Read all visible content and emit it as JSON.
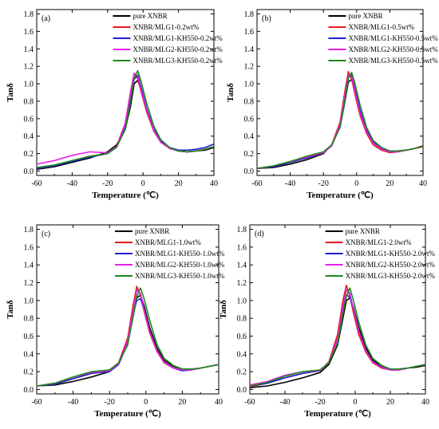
{
  "chart_data": [
    {
      "type": "line",
      "panel_label": "(a)",
      "xlabel": "Temperature (℃)",
      "ylabel": "Tanδ",
      "xlim": [
        -60,
        40
      ],
      "ylim": [
        -0.05,
        1.85
      ],
      "xticks": [
        -60,
        -40,
        -20,
        0,
        20,
        40
      ],
      "yticks": [
        0.0,
        0.2,
        0.4,
        0.6,
        0.8,
        1.0,
        1.2,
        1.4,
        1.6,
        1.8
      ],
      "legend_position": "top-right",
      "grid": false,
      "series": [
        {
          "name": "pure XNBR",
          "color": "#000000",
          "x": [
            -60,
            -50,
            -40,
            -30,
            -20,
            -15,
            -10,
            -7,
            -5,
            -3,
            -1,
            2,
            6,
            10,
            15,
            20,
            25,
            30,
            35,
            40
          ],
          "y": [
            0.02,
            0.05,
            0.1,
            0.15,
            0.22,
            0.3,
            0.48,
            0.75,
            1.0,
            1.04,
            0.92,
            0.7,
            0.48,
            0.34,
            0.26,
            0.23,
            0.22,
            0.23,
            0.24,
            0.27
          ]
        },
        {
          "name": "XNBR/MLG1-0.2wt%",
          "color": "#e41a1c",
          "x": [
            -60,
            -50,
            -40,
            -30,
            -20,
            -15,
            -10,
            -7,
            -5,
            -3,
            -1,
            2,
            6,
            10,
            15,
            20,
            25,
            30,
            35,
            40
          ],
          "y": [
            0.03,
            0.06,
            0.12,
            0.17,
            0.2,
            0.28,
            0.55,
            0.9,
            1.12,
            1.06,
            0.9,
            0.68,
            0.46,
            0.33,
            0.26,
            0.23,
            0.22,
            0.23,
            0.25,
            0.28
          ]
        },
        {
          "name": "XNBR/MLG1-KH550-0.2wt%",
          "color": "#1f1fd6",
          "x": [
            -60,
            -50,
            -40,
            -30,
            -20,
            -15,
            -10,
            -7,
            -5,
            -3,
            -1,
            2,
            6,
            10,
            15,
            20,
            25,
            30,
            35,
            40
          ],
          "y": [
            0.03,
            0.06,
            0.11,
            0.16,
            0.2,
            0.27,
            0.5,
            0.82,
            1.05,
            1.1,
            0.95,
            0.72,
            0.48,
            0.34,
            0.27,
            0.24,
            0.24,
            0.25,
            0.27,
            0.31
          ]
        },
        {
          "name": "XNBR/MLG2-KH550-0.2wt%",
          "color": "#e81ee8",
          "x": [
            -60,
            -50,
            -40,
            -30,
            -20,
            -15,
            -10,
            -7,
            -5,
            -3,
            -1,
            2,
            6,
            10,
            15,
            20,
            25,
            30,
            35,
            40
          ],
          "y": [
            0.08,
            0.12,
            0.18,
            0.22,
            0.21,
            0.28,
            0.55,
            0.92,
            1.12,
            1.08,
            0.92,
            0.7,
            0.47,
            0.33,
            0.26,
            0.23,
            0.22,
            0.23,
            0.25,
            0.28
          ]
        },
        {
          "name": "XNBR/MLG3-KH550-0.2wt%",
          "color": "#1a8a1a",
          "x": [
            -60,
            -50,
            -40,
            -30,
            -20,
            -15,
            -10,
            -7,
            -5,
            -3,
            -1,
            2,
            6,
            10,
            15,
            20,
            25,
            30,
            35,
            40
          ],
          "y": [
            0.04,
            0.07,
            0.12,
            0.17,
            0.2,
            0.27,
            0.48,
            0.8,
            1.06,
            1.15,
            1.02,
            0.78,
            0.52,
            0.36,
            0.27,
            0.23,
            0.22,
            0.23,
            0.25,
            0.28
          ]
        }
      ]
    },
    {
      "type": "line",
      "panel_label": "(b)",
      "xlabel": "Temperature (℃)",
      "ylabel": "Tanδ",
      "xlim": [
        -60,
        40
      ],
      "ylim": [
        -0.05,
        1.85
      ],
      "xticks": [
        -60,
        -40,
        -20,
        0,
        20,
        40
      ],
      "yticks": [
        0.0,
        0.2,
        0.4,
        0.6,
        0.8,
        1.0,
        1.2,
        1.4,
        1.6,
        1.8
      ],
      "legend_position": "top-right",
      "grid": false,
      "series": [
        {
          "name": "pure XNBR",
          "color": "#000000",
          "x": [
            -60,
            -50,
            -40,
            -30,
            -20,
            -15,
            -10,
            -7,
            -5,
            -3,
            -1,
            2,
            6,
            10,
            15,
            20,
            25,
            30,
            35,
            40
          ],
          "y": [
            0.03,
            0.04,
            0.08,
            0.13,
            0.2,
            0.3,
            0.5,
            0.8,
            1.02,
            1.05,
            0.92,
            0.68,
            0.46,
            0.33,
            0.26,
            0.23,
            0.23,
            0.24,
            0.26,
            0.28
          ]
        },
        {
          "name": "XNBR/MLG1-0.5wt%",
          "color": "#e41a1c",
          "x": [
            -60,
            -50,
            -40,
            -30,
            -20,
            -15,
            -10,
            -7,
            -5,
            -3,
            -1,
            2,
            6,
            10,
            15,
            20,
            25,
            30,
            35,
            40
          ],
          "y": [
            0.03,
            0.05,
            0.1,
            0.15,
            0.21,
            0.3,
            0.56,
            0.92,
            1.14,
            1.05,
            0.88,
            0.64,
            0.43,
            0.3,
            0.24,
            0.21,
            0.22,
            0.24,
            0.26,
            0.28
          ]
        },
        {
          "name": "XNBR/MLG1-KH550-0.5wt%",
          "color": "#1f1fd6",
          "x": [
            -60,
            -50,
            -40,
            -30,
            -20,
            -15,
            -10,
            -7,
            -5,
            -3,
            -1,
            2,
            6,
            10,
            15,
            20,
            25,
            30,
            35,
            40
          ],
          "y": [
            0.03,
            0.05,
            0.1,
            0.15,
            0.21,
            0.29,
            0.52,
            0.85,
            1.08,
            1.1,
            0.94,
            0.7,
            0.47,
            0.33,
            0.26,
            0.23,
            0.23,
            0.24,
            0.26,
            0.29
          ]
        },
        {
          "name": "XNBR/MLG2-KH550-0.5wt%",
          "color": "#e81ee8",
          "x": [
            -60,
            -50,
            -40,
            -30,
            -20,
            -15,
            -10,
            -7,
            -5,
            -3,
            -1,
            2,
            6,
            10,
            15,
            20,
            25,
            30,
            35,
            40
          ],
          "y": [
            0.03,
            0.06,
            0.11,
            0.16,
            0.21,
            0.29,
            0.54,
            0.88,
            1.1,
            1.08,
            0.91,
            0.67,
            0.45,
            0.32,
            0.25,
            0.22,
            0.22,
            0.24,
            0.26,
            0.29
          ]
        },
        {
          "name": "XNBR/MLG3-KH550-0.5wt%",
          "color": "#1a8a1a",
          "x": [
            -60,
            -50,
            -40,
            -30,
            -20,
            -15,
            -10,
            -7,
            -5,
            -3,
            -1,
            2,
            6,
            10,
            15,
            20,
            25,
            30,
            35,
            40
          ],
          "y": [
            0.03,
            0.06,
            0.11,
            0.17,
            0.22,
            0.3,
            0.5,
            0.82,
            1.06,
            1.13,
            1.0,
            0.76,
            0.5,
            0.35,
            0.27,
            0.23,
            0.23,
            0.24,
            0.26,
            0.29
          ]
        }
      ]
    },
    {
      "type": "line",
      "panel_label": "(c)",
      "xlabel": "Temperature (℃)",
      "ylabel": "Tanδ",
      "xlim": [
        -60,
        40
      ],
      "ylim": [
        -0.05,
        1.85
      ],
      "xticks": [
        -60,
        -40,
        -20,
        0,
        20,
        40
      ],
      "yticks": [
        0.0,
        0.2,
        0.4,
        0.6,
        0.8,
        1.0,
        1.2,
        1.4,
        1.6,
        1.8
      ],
      "legend_position": "top-right",
      "grid": false,
      "series": [
        {
          "name": "pure XNBR",
          "color": "#000000",
          "x": [
            -60,
            -50,
            -40,
            -30,
            -20,
            -15,
            -10,
            -7,
            -5,
            -3,
            -1,
            2,
            6,
            10,
            15,
            20,
            25,
            30,
            35,
            40
          ],
          "y": [
            0.04,
            0.05,
            0.09,
            0.14,
            0.2,
            0.3,
            0.52,
            0.82,
            1.03,
            1.06,
            0.94,
            0.7,
            0.47,
            0.33,
            0.26,
            0.23,
            0.22,
            0.24,
            0.26,
            0.28
          ]
        },
        {
          "name": "XNBR/MLG1-1.0wt%",
          "color": "#e41a1c",
          "x": [
            -60,
            -50,
            -40,
            -30,
            -20,
            -15,
            -10,
            -7,
            -5,
            -3,
            -1,
            2,
            6,
            10,
            15,
            20,
            25,
            30,
            35,
            40
          ],
          "y": [
            0.04,
            0.06,
            0.12,
            0.18,
            0.21,
            0.3,
            0.58,
            0.95,
            1.16,
            1.06,
            0.88,
            0.64,
            0.43,
            0.3,
            0.24,
            0.22,
            0.22,
            0.24,
            0.26,
            0.28
          ]
        },
        {
          "name": "XNBR/MLG1-KH550-1.0wt%",
          "color": "#1f1fd6",
          "x": [
            -60,
            -50,
            -40,
            -30,
            -20,
            -15,
            -10,
            -7,
            -5,
            -3,
            -1,
            2,
            6,
            10,
            15,
            20,
            25,
            30,
            35,
            40
          ],
          "y": [
            0.04,
            0.06,
            0.12,
            0.18,
            0.2,
            0.28,
            0.52,
            0.85,
            1.0,
            1.02,
            0.9,
            0.66,
            0.44,
            0.31,
            0.24,
            0.21,
            0.22,
            0.24,
            0.26,
            0.28
          ]
        },
        {
          "name": "XNBR/MLG2-KH550-1.0wt%",
          "color": "#e81ee8",
          "x": [
            -60,
            -50,
            -40,
            -30,
            -20,
            -15,
            -10,
            -7,
            -5,
            -3,
            -1,
            2,
            6,
            10,
            15,
            20,
            25,
            30,
            35,
            40
          ],
          "y": [
            0.04,
            0.07,
            0.14,
            0.19,
            0.21,
            0.29,
            0.55,
            0.9,
            1.12,
            1.08,
            0.9,
            0.66,
            0.44,
            0.31,
            0.24,
            0.22,
            0.22,
            0.24,
            0.26,
            0.28
          ]
        },
        {
          "name": "XNBR/MLG3-KH550-1.0wt%",
          "color": "#1a8a1a",
          "x": [
            -60,
            -50,
            -40,
            -30,
            -20,
            -15,
            -10,
            -7,
            -5,
            -3,
            -1,
            2,
            6,
            10,
            15,
            20,
            25,
            30,
            35,
            40
          ],
          "y": [
            0.04,
            0.07,
            0.14,
            0.2,
            0.22,
            0.3,
            0.5,
            0.82,
            1.05,
            1.14,
            1.02,
            0.78,
            0.51,
            0.35,
            0.27,
            0.23,
            0.23,
            0.24,
            0.26,
            0.28
          ]
        }
      ]
    },
    {
      "type": "line",
      "panel_label": "(d)",
      "xlabel": "Temperature (℃)",
      "ylabel": "Tanδ",
      "xlim": [
        -60,
        40
      ],
      "ylim": [
        -0.05,
        1.85
      ],
      "xticks": [
        -60,
        -40,
        -20,
        0,
        20,
        40
      ],
      "yticks": [
        0.0,
        0.2,
        0.4,
        0.6,
        0.8,
        1.0,
        1.2,
        1.4,
        1.6,
        1.8
      ],
      "legend_position": "top-right",
      "grid": false,
      "series": [
        {
          "name": "pure XNBR",
          "color": "#000000",
          "x": [
            -60,
            -50,
            -40,
            -30,
            -20,
            -15,
            -10,
            -7,
            -5,
            -3,
            -1,
            2,
            6,
            10,
            15,
            20,
            25,
            30,
            35,
            40
          ],
          "y": [
            0.02,
            0.04,
            0.08,
            0.13,
            0.19,
            0.28,
            0.5,
            0.8,
            1.0,
            1.03,
            0.92,
            0.7,
            0.47,
            0.33,
            0.26,
            0.23,
            0.23,
            0.24,
            0.25,
            0.27
          ]
        },
        {
          "name": "XNBR/MLG1-2.0wt%",
          "color": "#e41a1c",
          "x": [
            -60,
            -50,
            -40,
            -30,
            -20,
            -15,
            -10,
            -7,
            -5,
            -3,
            -1,
            2,
            6,
            10,
            15,
            20,
            25,
            30,
            35,
            40
          ],
          "y": [
            0.03,
            0.07,
            0.13,
            0.18,
            0.21,
            0.31,
            0.62,
            1.0,
            1.17,
            1.05,
            0.86,
            0.62,
            0.42,
            0.3,
            0.24,
            0.22,
            0.22,
            0.24,
            0.26,
            0.28
          ]
        },
        {
          "name": "XNBR/MLG1-KH550-2.0wt%",
          "color": "#1f1fd6",
          "x": [
            -60,
            -50,
            -40,
            -30,
            -20,
            -15,
            -10,
            -7,
            -5,
            -3,
            -1,
            2,
            6,
            10,
            15,
            20,
            25,
            30,
            35,
            40
          ],
          "y": [
            0.04,
            0.07,
            0.13,
            0.18,
            0.21,
            0.3,
            0.56,
            0.9,
            1.06,
            1.04,
            0.9,
            0.66,
            0.44,
            0.31,
            0.25,
            0.22,
            0.22,
            0.24,
            0.26,
            0.28
          ]
        },
        {
          "name": "XNBR/MLG2-KH550-2.0wt%",
          "color": "#e81ee8",
          "x": [
            -60,
            -50,
            -40,
            -30,
            -20,
            -15,
            -10,
            -7,
            -5,
            -3,
            -1,
            2,
            6,
            10,
            15,
            20,
            25,
            30,
            35,
            40
          ],
          "y": [
            0.05,
            0.09,
            0.16,
            0.2,
            0.21,
            0.3,
            0.57,
            0.93,
            1.12,
            1.08,
            0.9,
            0.66,
            0.44,
            0.31,
            0.25,
            0.22,
            0.22,
            0.24,
            0.26,
            0.28
          ]
        },
        {
          "name": "XNBR/MLG3-KH550-2.0wt%",
          "color": "#1a8a1a",
          "x": [
            -60,
            -50,
            -40,
            -30,
            -20,
            -15,
            -10,
            -7,
            -5,
            -3,
            -1,
            2,
            6,
            10,
            15,
            20,
            25,
            30,
            35,
            40
          ],
          "y": [
            0.04,
            0.08,
            0.15,
            0.2,
            0.22,
            0.3,
            0.52,
            0.85,
            1.05,
            1.14,
            1.0,
            0.76,
            0.5,
            0.35,
            0.27,
            0.23,
            0.23,
            0.24,
            0.26,
            0.28
          ]
        }
      ]
    }
  ]
}
